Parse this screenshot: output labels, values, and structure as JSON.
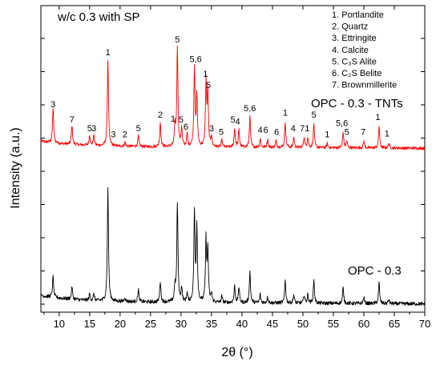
{
  "chart_data": {
    "type": "line",
    "title": "w/c 0.3 with SP",
    "xlabel": "2θ (°)",
    "ylabel": "Intensity (a.u.)",
    "xlim": [
      7,
      70
    ],
    "x_ticks": [
      10,
      15,
      20,
      25,
      30,
      35,
      40,
      45,
      50,
      55,
      60,
      65,
      70
    ],
    "y_ticks_shown": true,
    "y_tick_labels_shown": false,
    "grid": false,
    "legend_position": "top-right",
    "legend": [
      {
        "key": "1",
        "label": "1. Portlandite"
      },
      {
        "key": "2",
        "label": "2. Quartz"
      },
      {
        "key": "3",
        "label": "3. Ettringite"
      },
      {
        "key": "4",
        "label": "4. Calcite"
      },
      {
        "key": "5",
        "label": "5. C₃S Alite"
      },
      {
        "key": "6",
        "label": "6. C₂S Belite"
      },
      {
        "key": "7",
        "label": "7. Brownmillerite"
      }
    ],
    "series": [
      {
        "name": "OPC - 0.3 - TNTs",
        "color": "#ff0000",
        "baseline": 0.6,
        "peaks": [
          [
            9.0,
            0.4
          ],
          [
            12.1,
            0.22
          ],
          [
            15.0,
            0.12
          ],
          [
            15.7,
            0.12
          ],
          [
            18.0,
            1.0
          ],
          [
            20.8,
            0.05
          ],
          [
            23.0,
            0.12
          ],
          [
            26.6,
            0.28
          ],
          [
            29.0,
            0.23
          ],
          [
            29.4,
            1.15
          ],
          [
            30.1,
            0.22
          ],
          [
            31.0,
            0.14
          ],
          [
            32.2,
            0.92
          ],
          [
            32.6,
            0.6
          ],
          [
            34.1,
            0.75
          ],
          [
            34.4,
            0.62
          ],
          [
            35.0,
            0.12
          ],
          [
            36.7,
            0.08
          ],
          [
            38.8,
            0.22
          ],
          [
            39.5,
            0.2
          ],
          [
            41.3,
            0.35
          ],
          [
            43.0,
            0.1
          ],
          [
            44.2,
            0.1
          ],
          [
            45.6,
            0.08
          ],
          [
            47.1,
            0.3
          ],
          [
            48.5,
            0.12
          ],
          [
            50.2,
            0.12
          ],
          [
            50.8,
            0.12
          ],
          [
            51.8,
            0.28
          ],
          [
            54.0,
            0.05
          ],
          [
            56.6,
            0.18
          ],
          [
            57.2,
            0.08
          ],
          [
            60.0,
            0.08
          ],
          [
            62.5,
            0.25
          ],
          [
            64.1,
            0.06
          ]
        ]
      },
      {
        "name": "OPC - 0.3",
        "color": "#000000",
        "baseline": 0.0,
        "peaks": [
          [
            9.0,
            0.2
          ],
          [
            12.1,
            0.12
          ],
          [
            15.0,
            0.06
          ],
          [
            15.7,
            0.06
          ],
          [
            18.0,
            1.1
          ],
          [
            20.8,
            0.04
          ],
          [
            23.0,
            0.12
          ],
          [
            26.6,
            0.2
          ],
          [
            29.0,
            0.15
          ],
          [
            29.4,
            0.95
          ],
          [
            30.1,
            0.14
          ],
          [
            31.0,
            0.08
          ],
          [
            32.2,
            0.85
          ],
          [
            32.6,
            0.72
          ],
          [
            34.1,
            0.6
          ],
          [
            34.4,
            0.5
          ],
          [
            35.0,
            0.08
          ],
          [
            36.7,
            0.06
          ],
          [
            38.8,
            0.16
          ],
          [
            39.5,
            0.15
          ],
          [
            41.3,
            0.3
          ],
          [
            43.0,
            0.08
          ],
          [
            44.2,
            0.06
          ],
          [
            47.1,
            0.22
          ],
          [
            48.5,
            0.08
          ],
          [
            50.2,
            0.08
          ],
          [
            50.8,
            0.08
          ],
          [
            51.8,
            0.22
          ],
          [
            56.6,
            0.15
          ],
          [
            60.0,
            0.06
          ],
          [
            62.5,
            0.2
          ],
          [
            64.1,
            0.04
          ]
        ]
      }
    ],
    "series_labels": [
      {
        "text": "OPC - 0.3 - TNTs",
        "color": "#000000"
      },
      {
        "text": "OPC - 0.3",
        "color": "#000000"
      }
    ],
    "annotations": [
      {
        "text": "3",
        "x": 9.0,
        "series": 0
      },
      {
        "text": "7",
        "x": 12.1,
        "series": 0
      },
      {
        "text": "5",
        "x": 15.0,
        "series": 0
      },
      {
        "text": "3",
        "x": 15.7,
        "series": 0
      },
      {
        "text": "1",
        "x": 18.0,
        "series": 0
      },
      {
        "text": "3",
        "x": 18.9,
        "series": 0
      },
      {
        "text": "2",
        "x": 20.8,
        "series": 0
      },
      {
        "text": "5",
        "x": 23.0,
        "series": 0
      },
      {
        "text": "2",
        "x": 26.6,
        "series": 0
      },
      {
        "text": "1",
        "x": 28.7,
        "series": 0
      },
      {
        "text": "5",
        "x": 29.4,
        "series": 0
      },
      {
        "text": "5",
        "x": 30.0,
        "series": 0
      },
      {
        "text": "6",
        "x": 30.8,
        "series": 0
      },
      {
        "text": "5,6",
        "x": 32.4,
        "series": 0
      },
      {
        "text": "1",
        "x": 34.0,
        "series": 0
      },
      {
        "text": "5",
        "x": 34.5,
        "series": 0
      },
      {
        "text": "3",
        "x": 35.0,
        "series": 0
      },
      {
        "text": "5",
        "x": 36.6,
        "series": 0
      },
      {
        "text": "5",
        "x": 38.5,
        "series": 0
      },
      {
        "text": "4",
        "x": 39.3,
        "series": 0
      },
      {
        "text": "5,6",
        "x": 41.3,
        "series": 0
      },
      {
        "text": "4",
        "x": 43.0,
        "series": 0
      },
      {
        "text": "6",
        "x": 43.9,
        "series": 0
      },
      {
        "text": "6",
        "x": 45.7,
        "series": 0
      },
      {
        "text": "1",
        "x": 47.1,
        "series": 0
      },
      {
        "text": "4",
        "x": 48.4,
        "series": 0
      },
      {
        "text": "7",
        "x": 49.9,
        "series": 0
      },
      {
        "text": "1",
        "x": 50.7,
        "series": 0
      },
      {
        "text": "5",
        "x": 51.8,
        "series": 0
      },
      {
        "text": "1",
        "x": 54.0,
        "series": 0
      },
      {
        "text": "5,6",
        "x": 56.4,
        "series": 0
      },
      {
        "text": "5",
        "x": 57.2,
        "series": 0
      },
      {
        "text": "7",
        "x": 59.9,
        "series": 0
      },
      {
        "text": "1",
        "x": 62.3,
        "series": 0
      },
      {
        "text": "1",
        "x": 63.8,
        "series": 0
      }
    ]
  }
}
